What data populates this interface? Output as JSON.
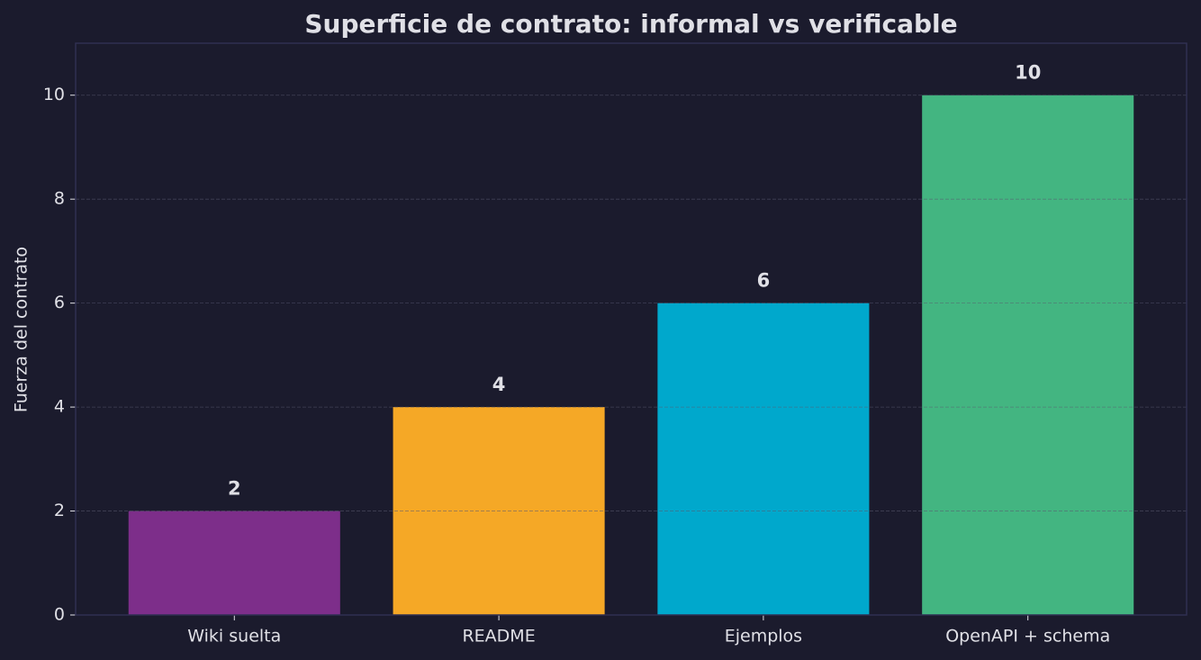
{
  "chart_data": {
    "type": "bar",
    "title": "Superficie de contrato: informal vs verificable",
    "y_label": "Fuerza del contrato",
    "categories": [
      "Wiki suelta",
      "README",
      "Ejemplos",
      "OpenAPI + schema"
    ],
    "values": [
      2,
      4,
      6,
      10
    ],
    "colors": [
      "#7d2e8a",
      "#f5a826",
      "#00a8cc",
      "#43b581"
    ],
    "ylim": [
      0,
      11
    ],
    "yticks": [
      0,
      2,
      4,
      6,
      8,
      10
    ],
    "grid": true,
    "show_value_labels": true
  }
}
